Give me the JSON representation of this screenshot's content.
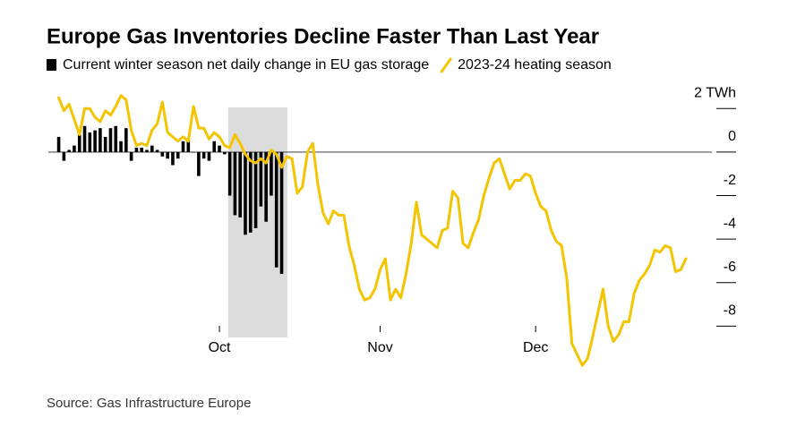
{
  "chart_data": {
    "type": "bar-line",
    "title": "Europe Gas Inventories Decline Faster Than Last Year",
    "source": "Source: Gas Infrastructure Europe",
    "x": [
      -31,
      -30,
      -29,
      -28,
      -27,
      -26,
      -25,
      -24,
      -23,
      -22,
      -21,
      -20,
      -19,
      -18,
      -17,
      -16,
      -15,
      -14,
      -13,
      -12,
      -11,
      -10,
      -9,
      -8,
      -7,
      -6,
      -5,
      -4,
      -3,
      -2,
      -1,
      0,
      1,
      2,
      3,
      4,
      5,
      6,
      7,
      8,
      9,
      10,
      11,
      12,
      13,
      14,
      15,
      16,
      17,
      18,
      19,
      20,
      21,
      22,
      23,
      24,
      25,
      26,
      27,
      28,
      29,
      30,
      31,
      32,
      33,
      34,
      35,
      36,
      37,
      38,
      39,
      40,
      41,
      42,
      43,
      44,
      45,
      46,
      47,
      48,
      49,
      50,
      51,
      52,
      53,
      54,
      55,
      56,
      57,
      58,
      59,
      60,
      61,
      62,
      63,
      64,
      65,
      66,
      67,
      68,
      69,
      70,
      71,
      72,
      73,
      74,
      75,
      76,
      77,
      78,
      79,
      80,
      81,
      82,
      83,
      84,
      85,
      86,
      87,
      88,
      89,
      90
    ],
    "series": [
      {
        "name": "Current winter season net daily change in EU gas storage",
        "type": "bar",
        "color": "#000000",
        "values": [
          0.7,
          -0.4,
          0.1,
          0.3,
          0.8,
          1.2,
          0.9,
          1.0,
          1.1,
          0.7,
          1.1,
          1.2,
          0.5,
          1.1,
          -0.4,
          0.2,
          0.2,
          0.1,
          0.3,
          0.1,
          -0.2,
          -0.3,
          -0.6,
          -0.3,
          0.5,
          0.6,
          0,
          -1.1,
          -0.3,
          -0.4,
          0.5,
          0.3,
          -0.1,
          -2.0,
          -2.9,
          -3.0,
          -3.8,
          -3.7,
          -3.5,
          -2.5,
          -3.2,
          -2.0,
          -5.3,
          -5.6,
          null,
          null,
          null,
          null,
          null,
          null,
          null,
          null,
          null,
          null,
          null,
          null,
          null,
          null,
          null,
          null,
          null,
          null,
          null,
          null,
          null,
          null,
          null,
          null,
          null,
          null,
          null,
          null,
          null,
          null,
          null,
          null,
          null,
          null,
          null,
          null,
          null,
          null,
          null,
          null,
          null,
          null,
          null,
          null,
          null,
          null,
          null,
          null,
          null,
          null,
          null,
          null,
          null,
          null,
          null,
          null,
          null,
          null,
          null,
          null,
          null,
          null,
          null,
          null,
          null,
          null,
          null,
          null,
          null,
          null,
          null,
          null,
          null,
          null,
          null,
          null,
          null,
          null
        ]
      },
      {
        "name": "2023-24 heating season",
        "type": "line",
        "color": "#f5c400",
        "values": [
          2.5,
          1.9,
          2.2,
          1.5,
          0.8,
          2.0,
          2.0,
          1.6,
          1.4,
          1.9,
          1.7,
          2.1,
          2.6,
          2.4,
          1.0,
          0.3,
          0.4,
          0.3,
          1.0,
          1.3,
          2.3,
          0.9,
          0.7,
          0.5,
          0.7,
          0.5,
          2.1,
          1.1,
          1.1,
          0.6,
          0.9,
          0.7,
          0.3,
          0.2,
          0.8,
          0.4,
          -0.1,
          -0.4,
          -0.5,
          -0.3,
          -0.5,
          0.1,
          -0.1,
          -0.7,
          -0.2,
          -0.3,
          -1.9,
          -1.6,
          0,
          0.4,
          -1.5,
          -2.8,
          -3.3,
          -2.7,
          -2.9,
          -2.9,
          -4.3,
          -5.2,
          -6.3,
          -6.8,
          -6.7,
          -6.3,
          -5.4,
          -4.9,
          -6.8,
          -6.3,
          -6.7,
          -5.6,
          -4.2,
          -2.3,
          -3.8,
          -4.0,
          -4.2,
          -4.4,
          -3.6,
          -3.5,
          -1.8,
          -2.1,
          -4.2,
          -4.4,
          -3.7,
          -3.1,
          -2.0,
          -1.2,
          -0.5,
          -0.3,
          -1.0,
          -1.7,
          -1.3,
          -1.3,
          -1.0,
          -1.1,
          -1.9,
          -2.5,
          -2.7,
          -3.6,
          -4.1,
          -4.3,
          -5.8,
          -8.8,
          -9.3,
          -9.8,
          -9.5,
          -8.5,
          -7.4,
          -6.3,
          -8.0,
          -8.7,
          -8.4,
          -7.8,
          -7.8,
          -6.5,
          -5.9,
          -5.6,
          -5.2,
          -4.5,
          -4.6,
          -4.3,
          -4.4,
          -5.5,
          -5.4,
          -4.9
        ]
      }
    ],
    "xlim": [
      -33,
      95
    ],
    "xticks": [
      {
        "value": 0,
        "label": "Oct"
      },
      {
        "value": 31,
        "label": "Nov"
      },
      {
        "value": 61,
        "label": "Dec"
      }
    ],
    "ylim": [
      -10,
      3
    ],
    "yticks": [
      {
        "value": 2,
        "label": "2 TWh"
      },
      0,
      -2,
      -4,
      -6,
      -8
    ],
    "shaded_x": [
      1.7,
      13.1
    ],
    "shade_color": "#dcdcdc",
    "zero_line": true
  }
}
